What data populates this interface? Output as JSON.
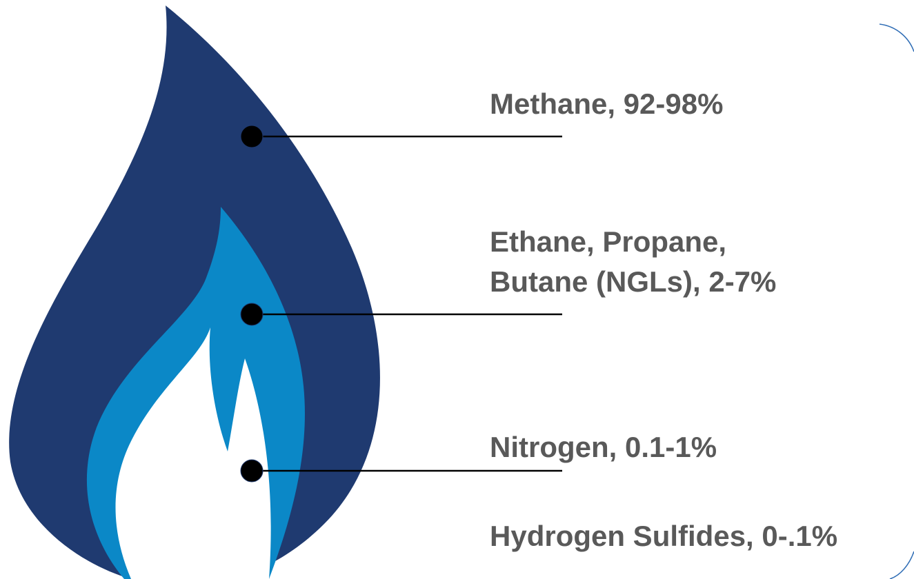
{
  "labels": [
    {
      "lines": [
        "Methane, 92-98%"
      ]
    },
    {
      "lines": [
        "Ethane, Propane,",
        "Butane (NGLs), 2-7%"
      ]
    },
    {
      "lines": [
        "Nitrogen, 0.1-1%"
      ]
    },
    {
      "lines": [
        "Hydrogen Sulfides, 0-.1%"
      ]
    }
  ]
}
